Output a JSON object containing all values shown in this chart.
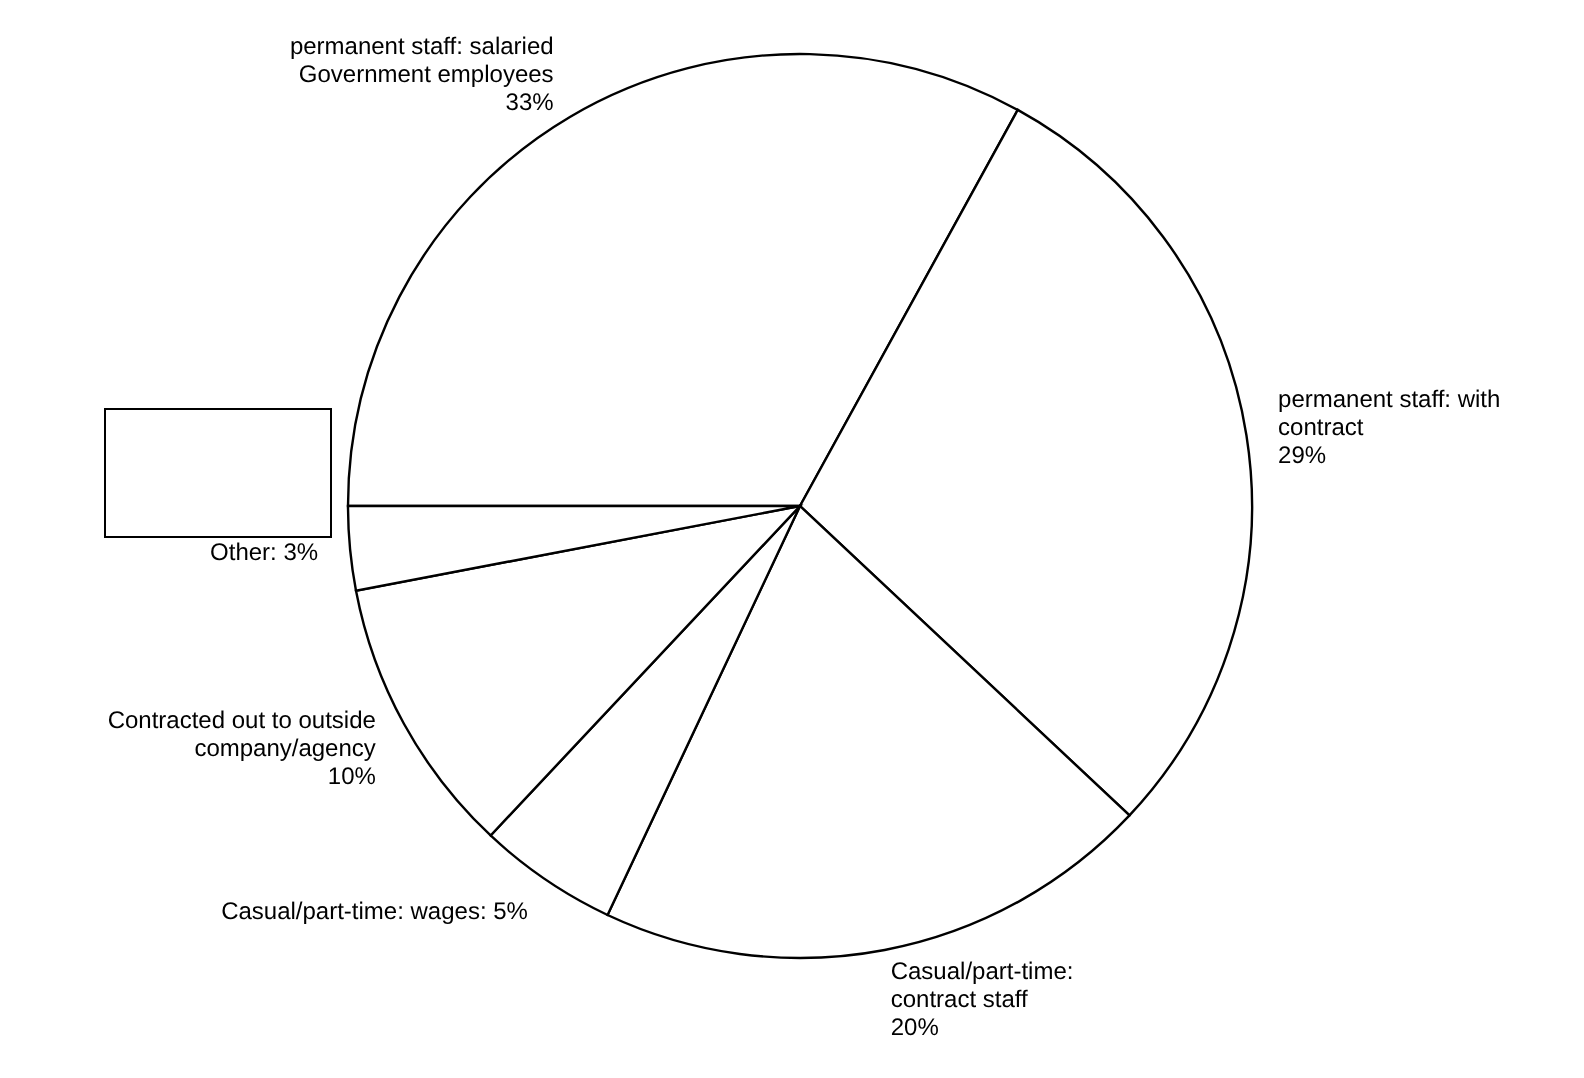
{
  "chart_data": {
    "type": "pie",
    "categories": [
      "permanent staff: salaried Government employees",
      "permanent staff: with contract",
      "Casual/part-time: contract staff",
      "Casual/part-time: wages",
      "Contracted out to outside company/agency",
      "Other"
    ],
    "values": [
      33,
      29,
      20,
      5,
      10,
      3
    ],
    "value_labels": [
      "33%",
      "29%",
      "20%",
      "5%",
      "10%",
      "3%"
    ],
    "colors": [
      "#ffffff",
      "#ffffff",
      "#ffffff",
      "#ffffff",
      "#ffffff",
      "#ffffff"
    ]
  }
}
